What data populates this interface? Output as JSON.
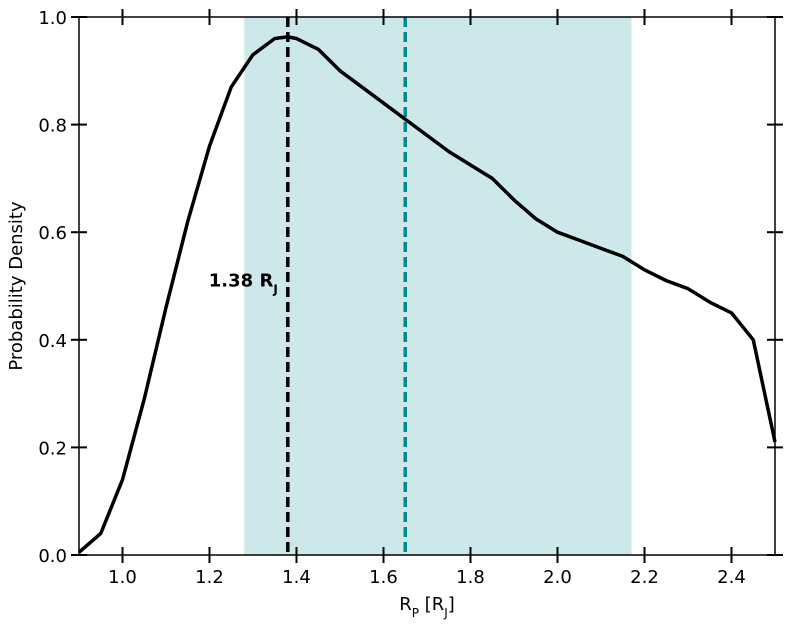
{
  "chart_data": {
    "type": "line",
    "ylabel": "Probability Density",
    "xlabel": [
      {
        "text": "R",
        "sub": false
      },
      {
        "text": "P",
        "sub": true
      },
      {
        "text": " [R",
        "sub": false
      },
      {
        "text": "J",
        "sub": true
      },
      {
        "text": "]",
        "sub": false
      }
    ],
    "x": [
      0.9,
      0.95,
      1.0,
      1.05,
      1.1,
      1.15,
      1.2,
      1.25,
      1.3,
      1.35,
      1.38,
      1.4,
      1.45,
      1.5,
      1.55,
      1.6,
      1.65,
      1.7,
      1.75,
      1.8,
      1.85,
      1.9,
      1.95,
      2.0,
      2.05,
      2.1,
      2.15,
      2.2,
      2.25,
      2.3,
      2.35,
      2.4,
      2.45,
      2.5
    ],
    "series": [
      {
        "color": "#000000",
        "values": [
          0.005,
          0.04,
          0.14,
          0.29,
          0.46,
          0.62,
          0.76,
          0.87,
          0.93,
          0.96,
          0.963,
          0.96,
          0.94,
          0.9,
          0.87,
          0.84,
          0.81,
          0.78,
          0.75,
          0.725,
          0.7,
          0.66,
          0.625,
          0.6,
          0.585,
          0.57,
          0.555,
          0.53,
          0.51,
          0.495,
          0.47,
          0.45,
          0.4,
          0.21
        ]
      }
    ],
    "span": {
      "x": [
        1.28,
        2.17
      ],
      "color": "#cde8e8"
    },
    "vlines": [
      {
        "x": 1.38,
        "color": "#000000"
      },
      {
        "x": 1.65,
        "color": "#008b8b"
      }
    ],
    "annotation": {
      "x": 1.38,
      "y": 0.51,
      "parts": [
        {
          "text": "1.38 R",
          "sub": false
        },
        {
          "text": "J",
          "sub": true
        }
      ]
    },
    "xlim": [
      0.9,
      2.5
    ],
    "ylim": [
      0,
      1
    ],
    "xticks": [
      {
        "value": 1,
        "label": "1.0"
      },
      1.2,
      1.4,
      1.6,
      1.8,
      {
        "value": 2,
        "label": "2.0"
      },
      2.2,
      2.4
    ],
    "yticks": [
      {
        "value": 0,
        "label": "0.0"
      },
      0.2,
      0.4,
      0.6,
      0.8,
      {
        "value": 1,
        "label": "1.0"
      }
    ]
  }
}
